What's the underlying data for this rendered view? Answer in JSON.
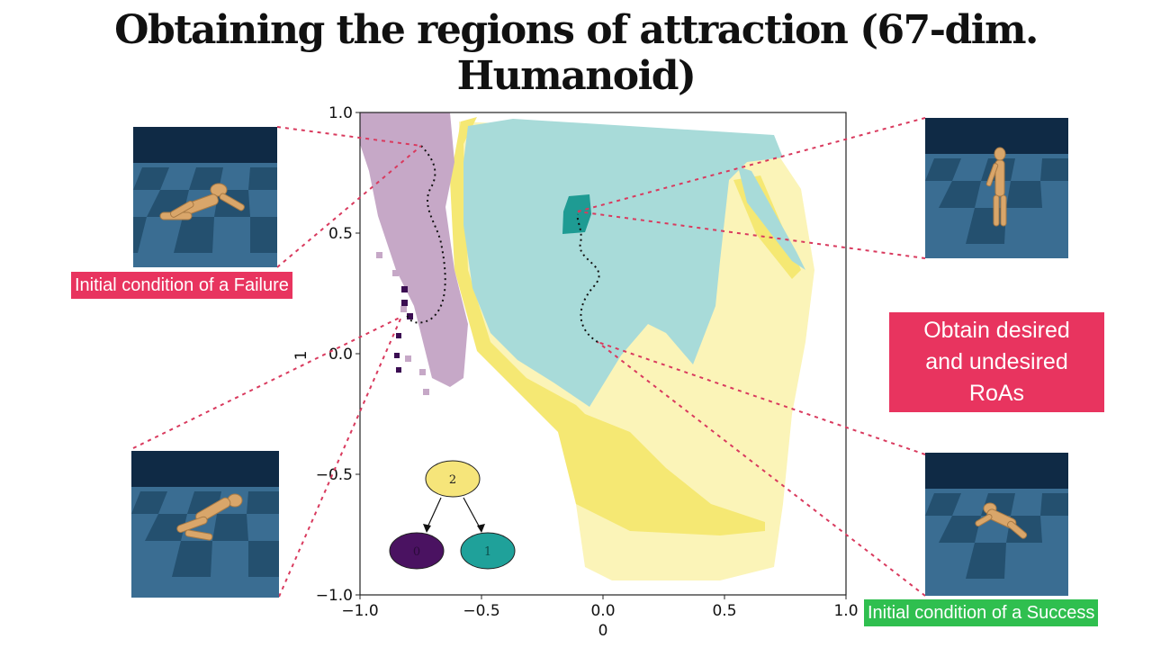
{
  "slide": {
    "title": "Obtaining the regions of attraction (67-dim. Humanoid)",
    "failure_label": "Initial condition of a Failure",
    "success_label": "Initial condition of a Success",
    "callout_text": "Obtain desired and undesired RoAs"
  },
  "plot": {
    "xlabel": "0",
    "ylabel": "1",
    "xlim": [
      -1.0,
      1.0
    ],
    "ylim": [
      -1.0,
      1.0
    ],
    "xticks": [
      "−1.0",
      "−0.5",
      "0.0",
      "0.5",
      "1.0"
    ],
    "yticks": [
      "1.0",
      "0.5",
      "0.0",
      "−0.5",
      "−1.0"
    ],
    "trajectories": [
      {
        "name": "failure",
        "start": [
          -0.75,
          0.8
        ],
        "end": [
          -0.82,
          0.15
        ]
      },
      {
        "name": "success",
        "start": [
          -0.03,
          0.05
        ],
        "end": [
          -0.1,
          0.62
        ]
      }
    ]
  },
  "graph": {
    "nodes": [
      {
        "id": "2",
        "color": "#f6e57a"
      },
      {
        "id": "0",
        "color": "#4a1261"
      },
      {
        "id": "1",
        "color": "#1fa19a"
      }
    ]
  },
  "colors": {
    "purple_region": "#c6a8c7",
    "teal_region": "#a8dbd9",
    "yellow_region": "#f5e873",
    "pale_yellow_region": "#fbf4b8",
    "accent_pink": "#e8345f",
    "accent_green": "#2fbf4f"
  }
}
